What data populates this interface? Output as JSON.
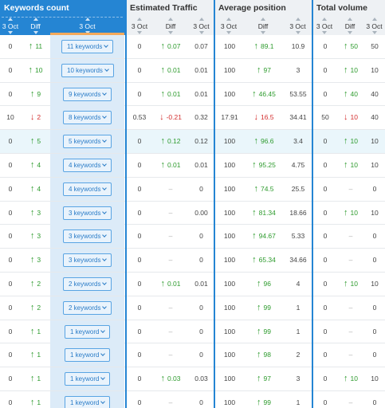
{
  "headers": {
    "keywords_count": "Keywords count",
    "estimated_traffic": "Estimated Traffic",
    "average_position": "Average position",
    "total_volume": "Total volume"
  },
  "subheaders": {
    "kc": [
      "3 Oct",
      "Diff",
      "3 Oct"
    ],
    "et": [
      "3 Oct",
      "Diff",
      "3 Oct"
    ],
    "ap": [
      "3 Oct",
      "Diff",
      "3 Oct"
    ],
    "tv": [
      "3 Oct",
      "Diff",
      "3 Oct"
    ]
  },
  "colors": {
    "accent": "#2585d3",
    "up": "#2e9b2e",
    "down": "#d32f2f",
    "highlight": "#eaf6fb"
  },
  "rows": [
    {
      "kc_prev": "0",
      "kc_diff": "11",
      "kc_dir": "up",
      "kw": "11 keywords",
      "et_prev": "0",
      "et_diff": "0.07",
      "et_dir": "up",
      "et_cur": "0.07",
      "ap_prev": "100",
      "ap_diff": "89.1",
      "ap_dir": "up",
      "ap_cur": "10.9",
      "tv_prev": "0",
      "tv_diff": "50",
      "tv_dir": "up",
      "tv_cur": "50"
    },
    {
      "kc_prev": "0",
      "kc_diff": "10",
      "kc_dir": "up",
      "kw": "10 keywords",
      "et_prev": "0",
      "et_diff": "0.01",
      "et_dir": "up",
      "et_cur": "0.01",
      "ap_prev": "100",
      "ap_diff": "97",
      "ap_dir": "up",
      "ap_cur": "3",
      "tv_prev": "0",
      "tv_diff": "10",
      "tv_dir": "up",
      "tv_cur": "10"
    },
    {
      "kc_prev": "0",
      "kc_diff": "9",
      "kc_dir": "up",
      "kw": "9 keywords",
      "et_prev": "0",
      "et_diff": "0.01",
      "et_dir": "up",
      "et_cur": "0.01",
      "ap_prev": "100",
      "ap_diff": "46.45",
      "ap_dir": "up",
      "ap_cur": "53.55",
      "tv_prev": "0",
      "tv_diff": "40",
      "tv_dir": "up",
      "tv_cur": "40"
    },
    {
      "kc_prev": "10",
      "kc_diff": "2",
      "kc_dir": "down",
      "kw": "8 keywords",
      "et_prev": "0.53",
      "et_diff": "-0.21",
      "et_dir": "down",
      "et_cur": "0.32",
      "ap_prev": "17.91",
      "ap_diff": "16.5",
      "ap_dir": "down",
      "ap_cur": "34.41",
      "tv_prev": "50",
      "tv_diff": "10",
      "tv_dir": "down",
      "tv_cur": "40"
    },
    {
      "kc_prev": "0",
      "kc_diff": "5",
      "kc_dir": "up",
      "kw": "5 keywords",
      "et_prev": "0",
      "et_diff": "0.12",
      "et_dir": "up",
      "et_cur": "0.12",
      "ap_prev": "100",
      "ap_diff": "96.6",
      "ap_dir": "up",
      "ap_cur": "3.4",
      "tv_prev": "0",
      "tv_diff": "10",
      "tv_dir": "up",
      "tv_cur": "10",
      "highlight": true
    },
    {
      "kc_prev": "0",
      "kc_diff": "4",
      "kc_dir": "up",
      "kw": "4 keywords",
      "et_prev": "0",
      "et_diff": "0.01",
      "et_dir": "up",
      "et_cur": "0.01",
      "ap_prev": "100",
      "ap_diff": "95.25",
      "ap_dir": "up",
      "ap_cur": "4.75",
      "tv_prev": "0",
      "tv_diff": "10",
      "tv_dir": "up",
      "tv_cur": "10"
    },
    {
      "kc_prev": "0",
      "kc_diff": "4",
      "kc_dir": "up",
      "kw": "4 keywords",
      "et_prev": "0",
      "et_diff": "–",
      "et_dir": "none",
      "et_cur": "0",
      "ap_prev": "100",
      "ap_diff": "74.5",
      "ap_dir": "up",
      "ap_cur": "25.5",
      "tv_prev": "0",
      "tv_diff": "–",
      "tv_dir": "none",
      "tv_cur": "0"
    },
    {
      "kc_prev": "0",
      "kc_diff": "3",
      "kc_dir": "up",
      "kw": "3 keywords",
      "et_prev": "0",
      "et_diff": "–",
      "et_dir": "none",
      "et_cur": "0.00",
      "ap_prev": "100",
      "ap_diff": "81.34",
      "ap_dir": "up",
      "ap_cur": "18.66",
      "tv_prev": "0",
      "tv_diff": "10",
      "tv_dir": "up",
      "tv_cur": "10"
    },
    {
      "kc_prev": "0",
      "kc_diff": "3",
      "kc_dir": "up",
      "kw": "3 keywords",
      "et_prev": "0",
      "et_diff": "–",
      "et_dir": "none",
      "et_cur": "0",
      "ap_prev": "100",
      "ap_diff": "94.67",
      "ap_dir": "up",
      "ap_cur": "5.33",
      "tv_prev": "0",
      "tv_diff": "–",
      "tv_dir": "none",
      "tv_cur": "0"
    },
    {
      "kc_prev": "0",
      "kc_diff": "3",
      "kc_dir": "up",
      "kw": "3 keywords",
      "et_prev": "0",
      "et_diff": "–",
      "et_dir": "none",
      "et_cur": "0",
      "ap_prev": "100",
      "ap_diff": "65.34",
      "ap_dir": "up",
      "ap_cur": "34.66",
      "tv_prev": "0",
      "tv_diff": "–",
      "tv_dir": "none",
      "tv_cur": "0"
    },
    {
      "kc_prev": "0",
      "kc_diff": "2",
      "kc_dir": "up",
      "kw": "2 keywords",
      "et_prev": "0",
      "et_diff": "0.01",
      "et_dir": "up",
      "et_cur": "0.01",
      "ap_prev": "100",
      "ap_diff": "96",
      "ap_dir": "up",
      "ap_cur": "4",
      "tv_prev": "0",
      "tv_diff": "10",
      "tv_dir": "up",
      "tv_cur": "10"
    },
    {
      "kc_prev": "0",
      "kc_diff": "2",
      "kc_dir": "up",
      "kw": "2 keywords",
      "et_prev": "0",
      "et_diff": "–",
      "et_dir": "none",
      "et_cur": "0",
      "ap_prev": "100",
      "ap_diff": "99",
      "ap_dir": "up",
      "ap_cur": "1",
      "tv_prev": "0",
      "tv_diff": "–",
      "tv_dir": "none",
      "tv_cur": "0"
    },
    {
      "kc_prev": "0",
      "kc_diff": "1",
      "kc_dir": "up",
      "kw": "1 keyword",
      "et_prev": "0",
      "et_diff": "–",
      "et_dir": "none",
      "et_cur": "0",
      "ap_prev": "100",
      "ap_diff": "99",
      "ap_dir": "up",
      "ap_cur": "1",
      "tv_prev": "0",
      "tv_diff": "–",
      "tv_dir": "none",
      "tv_cur": "0"
    },
    {
      "kc_prev": "0",
      "kc_diff": "1",
      "kc_dir": "up",
      "kw": "1 keyword",
      "et_prev": "0",
      "et_diff": "–",
      "et_dir": "none",
      "et_cur": "0",
      "ap_prev": "100",
      "ap_diff": "98",
      "ap_dir": "up",
      "ap_cur": "2",
      "tv_prev": "0",
      "tv_diff": "–",
      "tv_dir": "none",
      "tv_cur": "0"
    },
    {
      "kc_prev": "0",
      "kc_diff": "1",
      "kc_dir": "up",
      "kw": "1 keyword",
      "et_prev": "0",
      "et_diff": "0.03",
      "et_dir": "up",
      "et_cur": "0.03",
      "ap_prev": "100",
      "ap_diff": "97",
      "ap_dir": "up",
      "ap_cur": "3",
      "tv_prev": "0",
      "tv_diff": "10",
      "tv_dir": "up",
      "tv_cur": "10"
    },
    {
      "kc_prev": "0",
      "kc_diff": "1",
      "kc_dir": "up",
      "kw": "1 keyword",
      "et_prev": "0",
      "et_diff": "–",
      "et_dir": "none",
      "et_cur": "0",
      "ap_prev": "100",
      "ap_diff": "99",
      "ap_dir": "up",
      "ap_cur": "1",
      "tv_prev": "0",
      "tv_diff": "–",
      "tv_dir": "none",
      "tv_cur": "0"
    }
  ]
}
